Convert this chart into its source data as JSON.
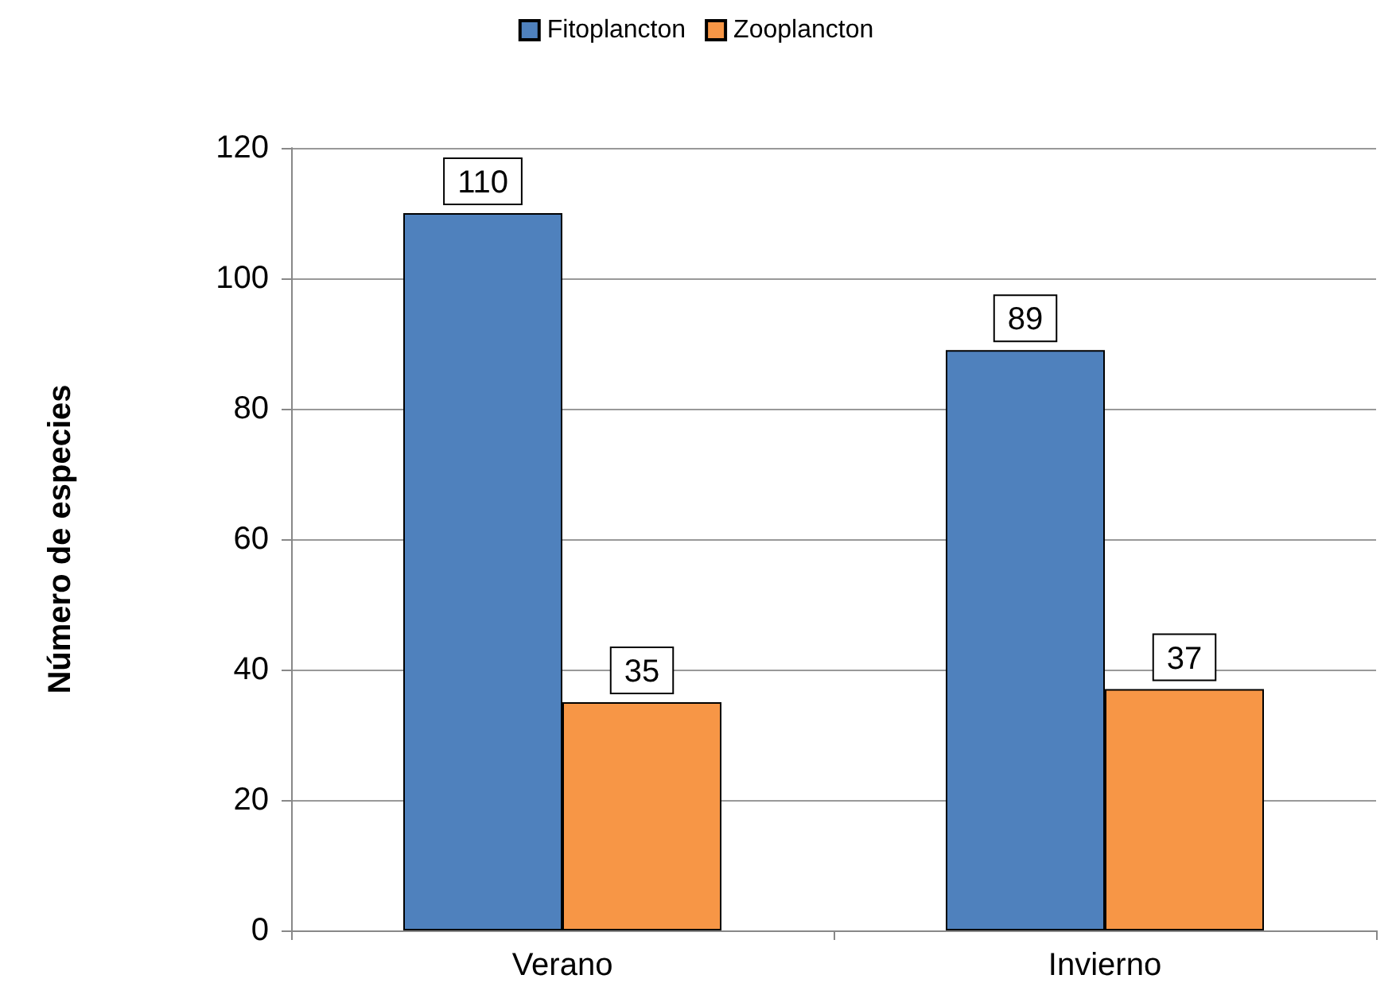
{
  "chart_data": {
    "type": "bar",
    "ylabel": "Número de especies",
    "categories": [
      "Verano",
      "Invierno"
    ],
    "series": [
      {
        "name": "Fitoplancton",
        "color": "#4f81bd",
        "values": [
          110,
          89
        ]
      },
      {
        "name": "Zooplancton",
        "color": "#f79646",
        "values": [
          35,
          37
        ]
      }
    ],
    "ylim": [
      0,
      120
    ],
    "yticks": [
      0,
      20,
      40,
      60,
      80,
      100,
      120
    ],
    "grid": "y",
    "legend": "top",
    "data_labels": true
  }
}
